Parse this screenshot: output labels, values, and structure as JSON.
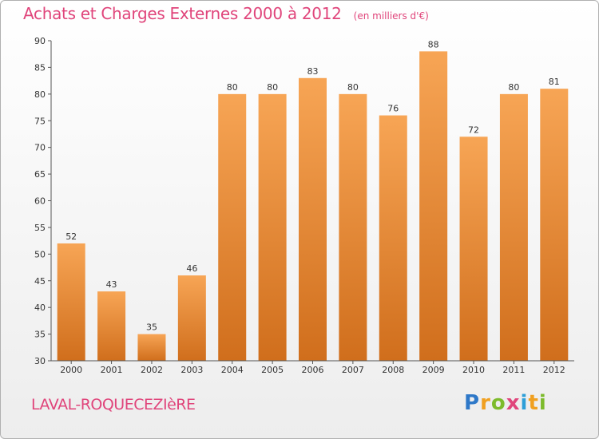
{
  "title": "Achats et Charges Externes 2000 à 2012",
  "unit": "(en milliers d'€)",
  "commune": "LAVAL-ROQUECEZIèRE",
  "logo": {
    "text": "Proxiti"
  },
  "colors": {
    "bar_light": "#f7a555",
    "bar_dark": "#d06e1c",
    "accent": "#e0457b"
  },
  "chart_data": {
    "type": "bar",
    "categories": [
      "2000",
      "2001",
      "2002",
      "2003",
      "2004",
      "2005",
      "2006",
      "2007",
      "2008",
      "2009",
      "2010",
      "2011",
      "2012"
    ],
    "values": [
      52,
      43,
      35,
      46,
      80,
      80,
      83,
      80,
      76,
      88,
      72,
      80,
      81
    ],
    "title": "Achats et Charges Externes 2000 à 2012",
    "xlabel": "",
    "ylabel": "",
    "ylim": [
      30,
      90
    ],
    "yticks": [
      30,
      35,
      40,
      45,
      50,
      55,
      60,
      65,
      70,
      75,
      80,
      85,
      90
    ],
    "grid": false,
    "legend": "none"
  }
}
